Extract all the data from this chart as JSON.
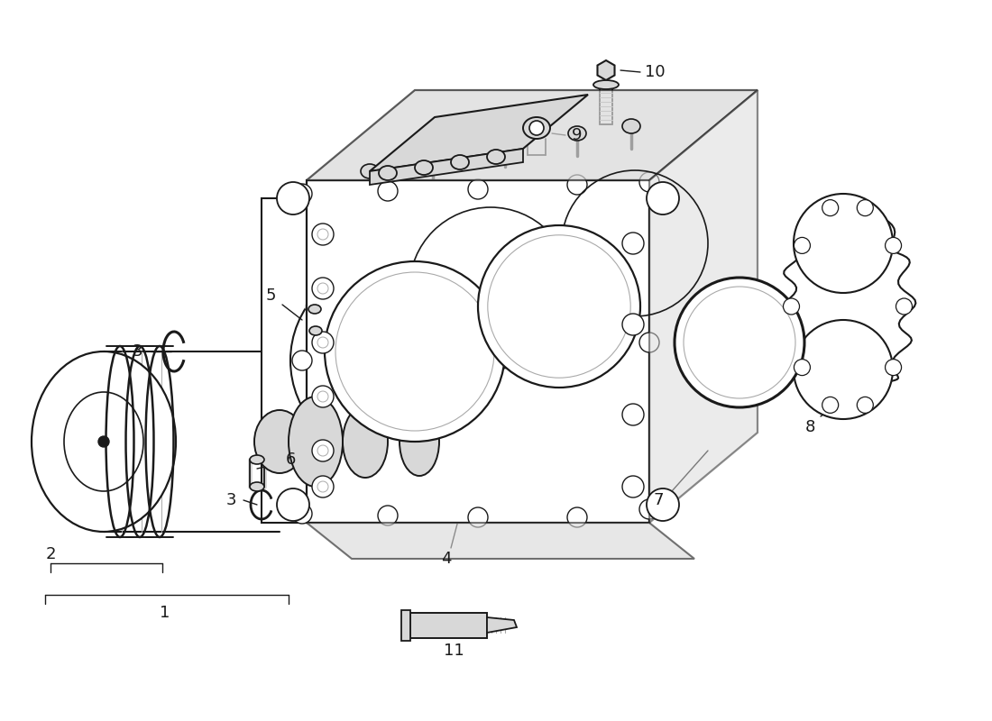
{
  "bg": "#ffffff",
  "lc": "#1a1a1a",
  "lg": "#d8d8d8",
  "mg": "#aaaaaa",
  "wm1": "#c8c896",
  "wm2": "#b8b878",
  "fig_w": 11.0,
  "fig_h": 8.0,
  "dpi": 100
}
